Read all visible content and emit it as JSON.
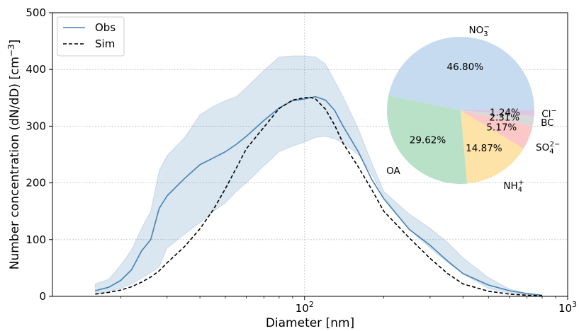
{
  "chart_data": [
    {
      "type": "line",
      "xlabel": "Diameter [nm]",
      "ylabel": "Number concentration (dN/dD) [cm",
      "ylabel_sup": "−3",
      "ylabel_end": "]",
      "xscale": "log",
      "xlim": [
        11,
        1000
      ],
      "ylim": [
        0,
        500
      ],
      "yticks": [
        0,
        100,
        200,
        300,
        400,
        500
      ],
      "xticks": [
        {
          "value": 100,
          "base": "10",
          "exp": "2"
        },
        {
          "value": 1000,
          "base": "10",
          "exp": "3"
        }
      ],
      "grid": true,
      "legend": "top-left",
      "band": {
        "color": "#4682b4",
        "x": [
          16,
          18,
          20,
          22,
          24,
          26,
          28,
          30,
          35,
          40,
          45,
          50,
          55,
          60,
          70,
          80,
          90,
          100,
          110,
          120,
          130,
          140,
          160,
          180,
          200,
          250,
          300,
          350,
          400,
          500,
          600,
          700,
          800
        ],
        "lower": [
          5,
          8,
          14,
          22,
          32,
          42,
          52,
          85,
          110,
          130,
          150,
          165,
          185,
          200,
          230,
          255,
          265,
          272,
          280,
          282,
          278,
          270,
          250,
          215,
          175,
          118,
          85,
          60,
          40,
          14,
          6,
          3,
          1
        ],
        "upper": [
          22,
          30,
          55,
          82,
          120,
          150,
          222,
          248,
          280,
          320,
          335,
          345,
          352,
          368,
          398,
          422,
          424,
          424,
          422,
          410,
          380,
          352,
          295,
          235,
          185,
          145,
          120,
          95,
          68,
          33,
          13,
          5,
          2
        ]
      },
      "series": [
        {
          "name": "Obs",
          "color": "#4682b4",
          "style": "solid",
          "x": [
            16,
            18,
            20,
            22,
            24,
            26,
            28,
            30,
            35,
            40,
            45,
            50,
            55,
            60,
            70,
            80,
            90,
            100,
            110,
            120,
            130,
            140,
            160,
            180,
            200,
            250,
            300,
            350,
            400,
            500,
            600,
            700,
            800
          ],
          "y": [
            10,
            16,
            28,
            47,
            80,
            100,
            155,
            177,
            208,
            232,
            244,
            255,
            268,
            282,
            310,
            332,
            345,
            348,
            352,
            346,
            328,
            300,
            255,
            206,
            172,
            118,
            90,
            62,
            40,
            20,
            10,
            5,
            2
          ]
        },
        {
          "name": "Sim",
          "color": "#000000",
          "style": "dashed",
          "x": [
            16,
            18,
            20,
            22,
            24,
            26,
            28,
            30,
            35,
            40,
            45,
            50,
            55,
            60,
            70,
            80,
            90,
            100,
            105,
            110,
            120,
            130,
            140,
            160,
            180,
            200,
            250,
            300,
            350,
            400,
            500,
            600,
            700,
            800
          ],
          "y": [
            4,
            7,
            11,
            17,
            25,
            34,
            45,
            59,
            88,
            119,
            153,
            190,
            226,
            260,
            298,
            331,
            346,
            350,
            351,
            348,
            330,
            302,
            270,
            228,
            188,
            150,
            103,
            67,
            40,
            22,
            9,
            4,
            2,
            1
          ]
        }
      ]
    },
    {
      "type": "pie",
      "slices": [
        {
          "label": "NO",
          "label_sub": "3",
          "label_sup": "−",
          "value": 46.8,
          "pct": "46.80%",
          "color": "#c6dbef"
        },
        {
          "label": "OA",
          "value": 29.62,
          "pct": "29.62%",
          "color": "#b9e1c8"
        },
        {
          "label": "NH",
          "label_sub": "4",
          "label_sup": "+",
          "value": 14.87,
          "pct": "14.87%",
          "color": "#fde3a8"
        },
        {
          "label": "SO",
          "label_sub": "4",
          "label_sup": "2−",
          "value": 5.17,
          "pct": "5.17%",
          "color": "#fbc7c7"
        },
        {
          "label": "BC",
          "value": 2.31,
          "pct": "2.31%",
          "color": "#d9d9d9"
        },
        {
          "label": "Cl",
          "label_sup": "−",
          "value": 1.24,
          "pct": "1.24%",
          "color": "#dcc6e0"
        }
      ]
    }
  ]
}
